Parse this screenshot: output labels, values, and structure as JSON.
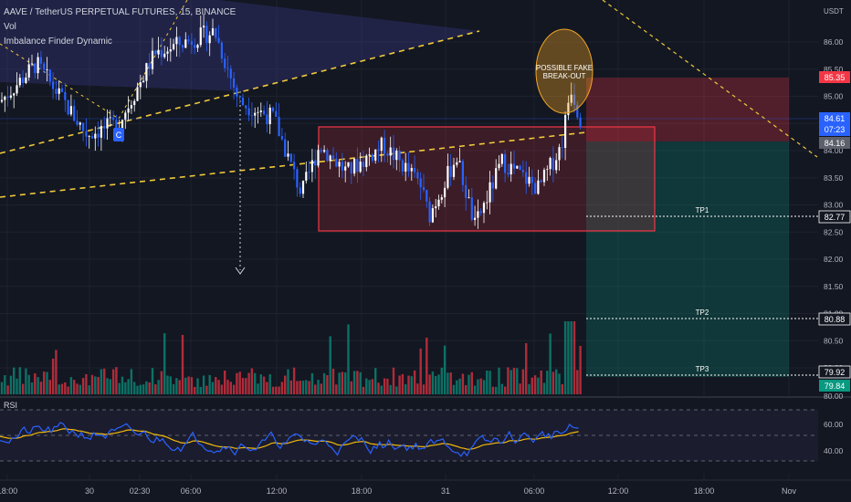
{
  "header": {
    "symbol_title": "AAVE / TetherUS PERPETUAL FUTURES, 15, BINANCE",
    "indicator_vol": "Vol",
    "indicator_imbalance": "Imbalance Finder Dynamic",
    "currency": "USDT"
  },
  "chart_data": {
    "type": "candlestick",
    "title": "AAVE / TetherUS PERPETUAL FUTURES, 15, BINANCE",
    "price_axis": {
      "ticks": [
        "86.00",
        "85.50",
        "85.00",
        "84.50",
        "84.00",
        "83.50",
        "83.00",
        "82.50",
        "82.00",
        "81.50",
        "81.00",
        "80.50",
        "80.00"
      ],
      "range": [
        79.75,
        86.3
      ]
    },
    "time_axis": {
      "ticks": [
        "18:00",
        "30",
        "02:30",
        "06:00",
        "12:00",
        "18:00",
        "31",
        "06:00",
        "12:00",
        "18:00",
        "Nov"
      ]
    },
    "price_labels": [
      {
        "name": "stop-loss",
        "value": "85.35",
        "color": "#f23645"
      },
      {
        "name": "current-price",
        "value": "84.61",
        "sub": "07:23",
        "color": "#2962ff"
      },
      {
        "name": "entry",
        "value": "84.16",
        "color": "#5d606b"
      },
      {
        "name": "tp1",
        "value": "82.77",
        "color": "#ffffff"
      },
      {
        "name": "tp2",
        "value": "80.88",
        "color": "#ffffff"
      },
      {
        "name": "tp3",
        "value": "79.92",
        "color": "#ffffff"
      },
      {
        "name": "volume-label",
        "value": "79.84",
        "color": "#089981"
      }
    ],
    "annotations": {
      "fake_breakout": [
        "POSSIBLE FAKE",
        "BREAK-OUT"
      ],
      "wave_label": "C",
      "tp1": "TP1",
      "tp2": "TP2",
      "tp3": "TP3"
    },
    "rsi": {
      "label": "RSI",
      "ticks": [
        "80.00",
        "60.00",
        "40.00"
      ],
      "range": [
        20,
        80
      ]
    },
    "colors": {
      "up": "#089981",
      "down": "#f23645",
      "candle_up_body": "#ffffff",
      "candle_down_body": "#2962ff",
      "rsi_line": "#2962ff",
      "rsi_ma": "#f0b90b",
      "range_box": "#f23645",
      "trendline": "#f0c93a"
    }
  }
}
